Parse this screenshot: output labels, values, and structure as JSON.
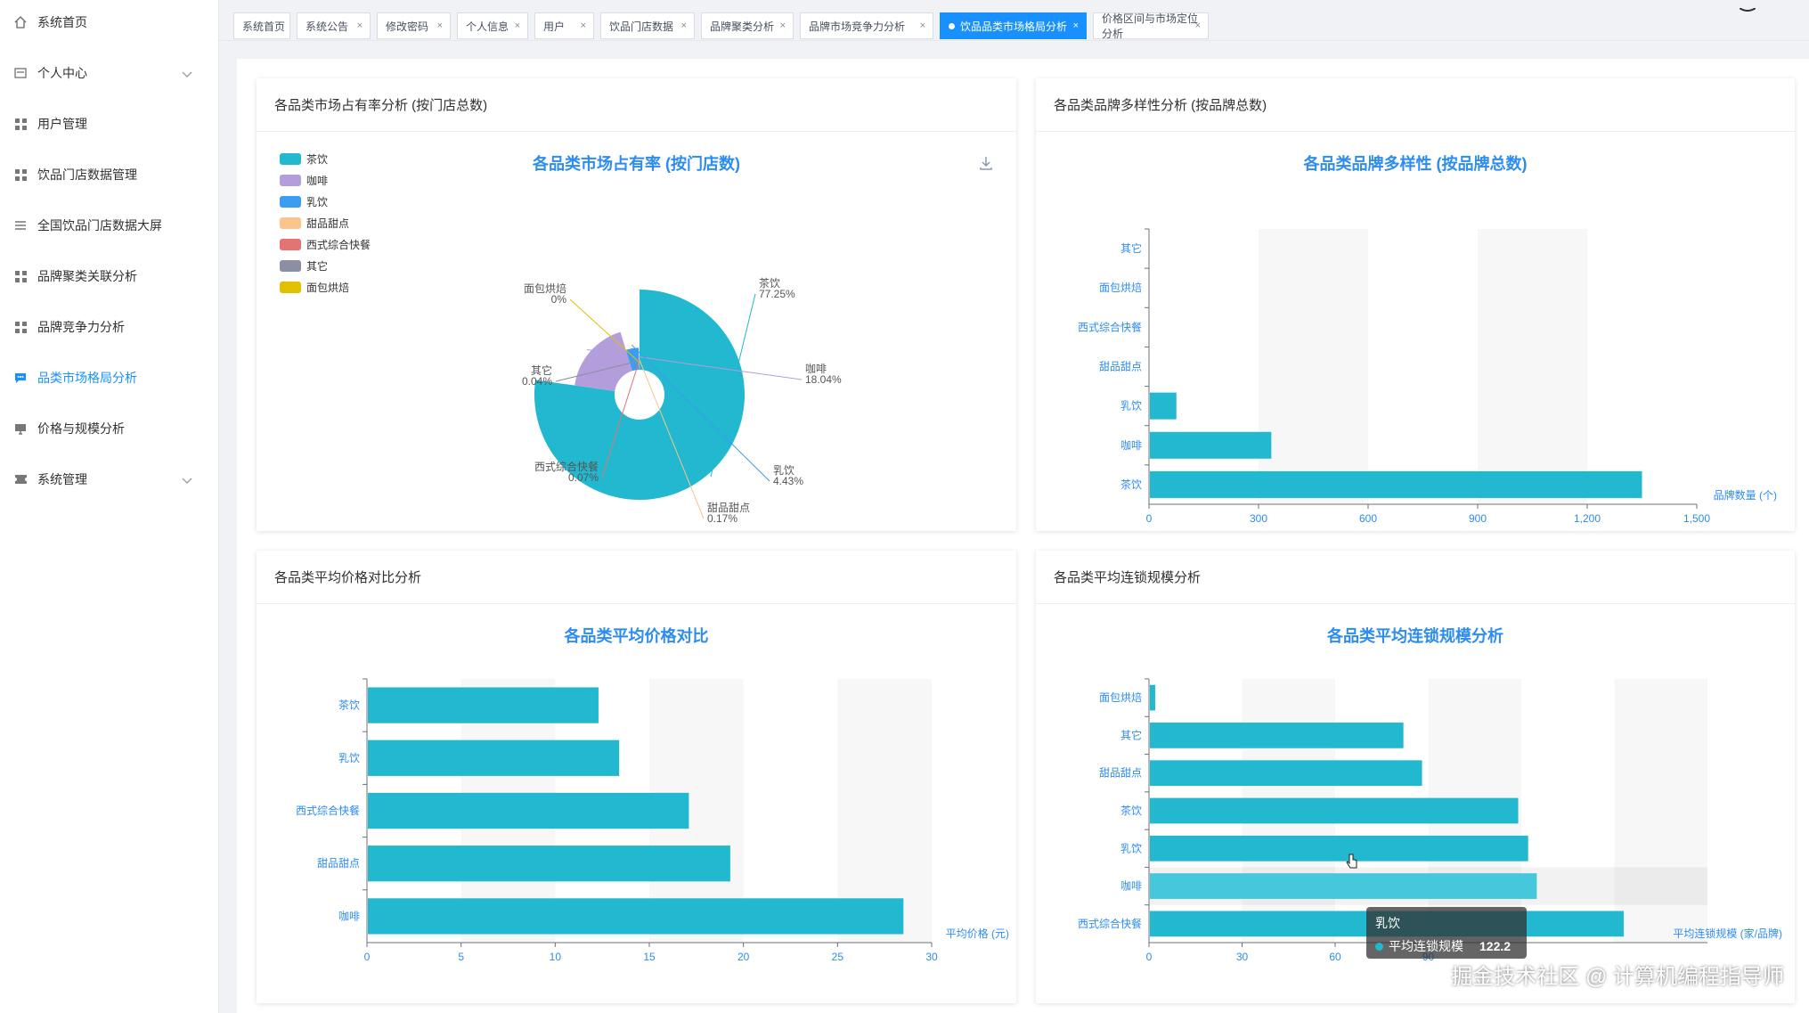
{
  "sidebar": {
    "items": [
      {
        "label": "系统首页",
        "icon": "home-icon"
      },
      {
        "label": "个人中心",
        "icon": "profile-card-icon",
        "expandable": true
      },
      {
        "label": "用户管理",
        "icon": "grid-icon"
      },
      {
        "label": "饮品门店数据管理",
        "icon": "grid-icon"
      },
      {
        "label": "全国饮品门店数据大屏",
        "icon": "list-icon"
      },
      {
        "label": "品牌聚类关联分析",
        "icon": "grid-icon"
      },
      {
        "label": "品牌竞争力分析",
        "icon": "grid-icon"
      },
      {
        "label": "品类市场格局分析",
        "icon": "chat-icon",
        "active": true
      },
      {
        "label": "价格与规模分析",
        "icon": "monitor-icon"
      },
      {
        "label": "系统管理",
        "icon": "ticket-icon",
        "expandable": true
      }
    ]
  },
  "tabs": [
    {
      "label": "系统首页",
      "closable": false
    },
    {
      "label": "系统公告",
      "closable": true
    },
    {
      "label": "修改密码",
      "closable": true
    },
    {
      "label": "个人信息",
      "closable": true
    },
    {
      "label": "用户",
      "closable": true
    },
    {
      "label": "饮品门店数据",
      "closable": true
    },
    {
      "label": "品牌聚类分析",
      "closable": true
    },
    {
      "label": "品牌市场竞争力分析",
      "closable": true
    },
    {
      "label": "饮品品类市场格局分析",
      "closable": true,
      "active": true
    },
    {
      "label": "价格区间与市场定位分析",
      "closable": true
    }
  ],
  "tab_close_glyph": "×",
  "colors": {
    "accent": "#1890ff",
    "bar": "#22b8cf",
    "bar_highlight": "#45c8db",
    "title": "#2d8cf0"
  },
  "cards": {
    "market_share": {
      "header": "各品类市场占有率分析 (按门店总数)",
      "chart_title": "各品类市场占有率 (按门店数)"
    },
    "brand_diversity": {
      "header": "各品类品牌多样性分析 (按品牌总数)",
      "chart_title": "各品类品牌多样性 (按品牌总数)"
    },
    "avg_price": {
      "header": "各品类平均价格对比分析",
      "chart_title": "各品类平均价格对比"
    },
    "chain_scale": {
      "header": "各品类平均连锁规模分析",
      "chart_title": "各品类平均连锁规模分析",
      "tooltip": {
        "category": "乳饮",
        "series": "平均连锁规模",
        "value": "122.2"
      }
    }
  },
  "chart_data": [
    {
      "type": "pie",
      "title": "各品类市场占有率 (按门店数)",
      "legend_position": "top-left",
      "categories": [
        "茶饮",
        "咖啡",
        "乳饮",
        "甜品甜点",
        "西式综合快餐",
        "其它",
        "面包烘焙"
      ],
      "values": [
        77.25,
        18.04,
        4.43,
        0.17,
        0.07,
        0.04,
        0
      ],
      "value_labels": [
        "77.25%",
        "18.04%",
        "4.43%",
        "0.17%",
        "0.07%",
        "0.04%",
        "0%"
      ],
      "colors": [
        "#22b8cf",
        "#b39ddb",
        "#3b9df2",
        "#fbc48c",
        "#e57373",
        "#8c8fa3",
        "#e2c000"
      ],
      "rose": true
    },
    {
      "type": "bar",
      "orientation": "horizontal",
      "title": "各品类品牌多样性 (按品牌总数)",
      "categories": [
        "其它",
        "面包烘焙",
        "西式综合快餐",
        "甜品甜点",
        "乳饮",
        "咖啡",
        "茶饮"
      ],
      "values": [
        0,
        0,
        0,
        0,
        75,
        335,
        1350
      ],
      "xlabel": "品牌数量 (个)",
      "xlim": [
        0,
        1500
      ],
      "xticks": [
        "0",
        "300",
        "600",
        "900",
        "1,200",
        "1,500"
      ],
      "xtick_values": [
        0,
        300,
        600,
        900,
        1200,
        1500
      ]
    },
    {
      "type": "bar",
      "orientation": "horizontal",
      "title": "各品类平均价格对比",
      "categories": [
        "茶饮",
        "乳饮",
        "西式综合快餐",
        "甜品甜点",
        "咖啡"
      ],
      "values": [
        12.3,
        13.4,
        17.1,
        19.3,
        28.5
      ],
      "xlabel": "平均价格 (元)",
      "xlim": [
        0,
        30
      ],
      "xticks": [
        "0",
        "5",
        "10",
        "15",
        "20",
        "25",
        "30"
      ],
      "xtick_values": [
        0,
        5,
        10,
        15,
        20,
        25,
        30
      ]
    },
    {
      "type": "bar",
      "orientation": "horizontal",
      "title": "各品类平均连锁规模分析",
      "categories": [
        "面包烘焙",
        "其它",
        "甜品甜点",
        "茶饮",
        "乳饮",
        "咖啡",
        "西式综合快餐"
      ],
      "values": [
        2,
        82,
        88,
        119,
        122.2,
        125,
        153
      ],
      "xlabel": "平均连锁规模 (家/品牌)",
      "xlim": [
        0,
        180
      ],
      "xticks": [
        "0",
        "30",
        "60",
        "90"
      ],
      "xtick_values": [
        0,
        30,
        60,
        90
      ],
      "highlight": "咖啡"
    }
  ],
  "watermark": "掘金技术社区 @ 计算机编程指导师"
}
